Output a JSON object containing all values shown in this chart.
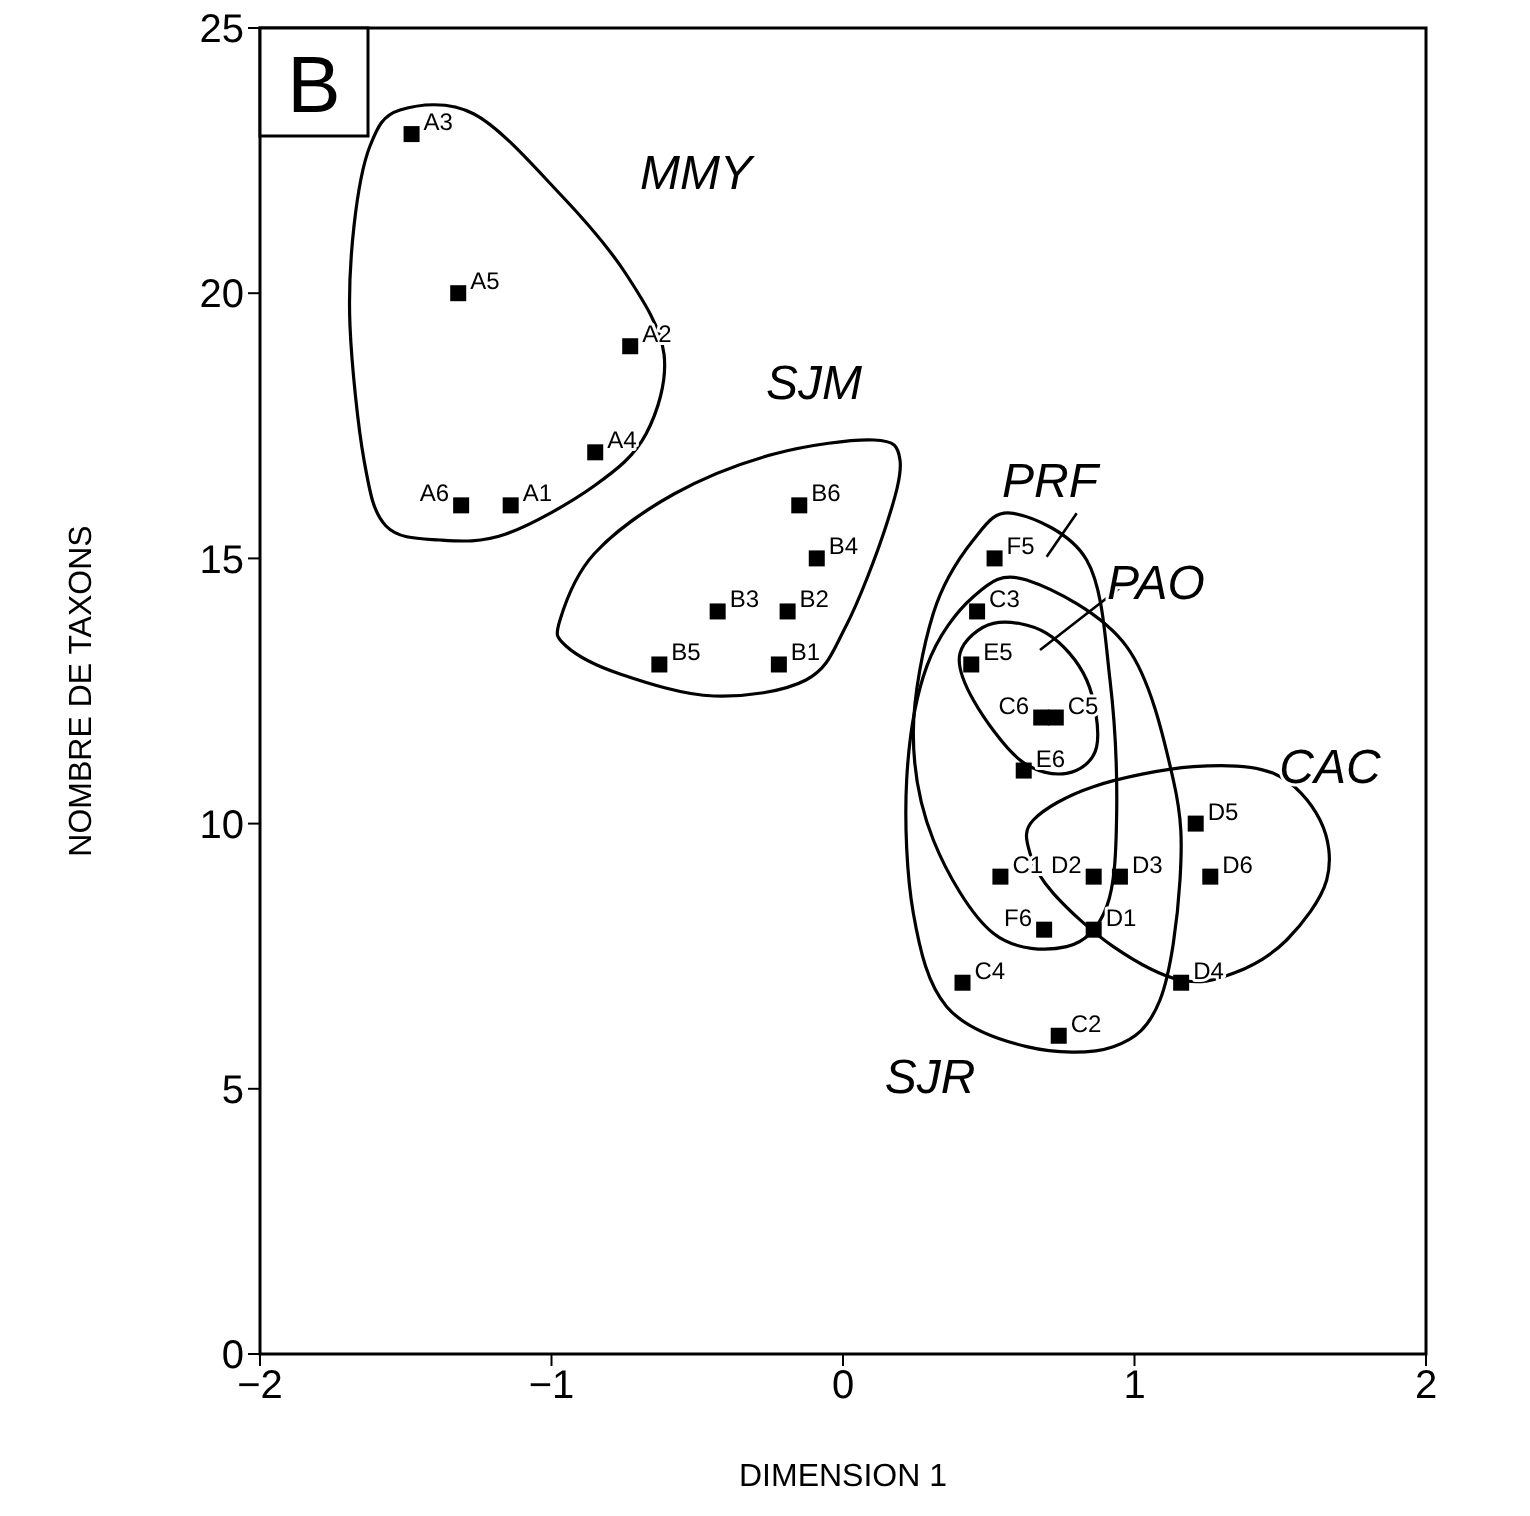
{
  "chart_data": {
    "type": "scatter",
    "xlabel": "DIMENSION 1",
    "ylabel": "NOMBRE DE TAXONS",
    "x": [
      -1.48,
      -1.32,
      -0.73,
      -0.85,
      -1.14,
      -1.31,
      -0.15,
      -0.09,
      -0.19,
      -0.43,
      -0.63,
      -0.22,
      0.52,
      0.46,
      0.44,
      0.68,
      0.73,
      0.62,
      0.54,
      0.86,
      0.95,
      1.21,
      1.26,
      0.69,
      0.86,
      0.41,
      1.16,
      0.74
    ],
    "values": [
      23,
      20,
      19,
      17,
      16,
      16,
      16,
      15,
      14,
      14,
      13,
      13,
      15,
      14,
      13,
      12,
      12,
      11,
      9,
      9,
      9,
      10,
      9,
      8,
      8,
      7,
      7,
      6
    ],
    "color": "#000000",
    "marker": "square",
    "grid": false,
    "legend": false,
    "xlim": [
      -2,
      2
    ],
    "xticks": [
      -2,
      -1,
      0,
      1,
      2
    ],
    "ylim": [
      0,
      25
    ],
    "yticks": [
      0,
      5,
      10,
      15,
      20,
      25
    ],
    "annotations": [
      "B",
      {
        "text": "A3",
        "x": -1.48,
        "y": 23
      },
      {
        "text": "A5",
        "x": -1.32,
        "y": 20
      },
      {
        "text": "A2",
        "x": -0.73,
        "y": 19
      },
      {
        "text": "A4",
        "x": -0.85,
        "y": 17
      },
      {
        "text": "A1",
        "x": -1.14,
        "y": 16
      },
      {
        "text": "A6",
        "x": -1.31,
        "y": 16
      },
      {
        "text": "B6",
        "x": -0.15,
        "y": 16
      },
      {
        "text": "B4",
        "x": -0.09,
        "y": 15
      },
      {
        "text": "B2",
        "x": -0.19,
        "y": 14
      },
      {
        "text": "B3",
        "x": -0.43,
        "y": 14
      },
      {
        "text": "B5",
        "x": -0.63,
        "y": 13
      },
      {
        "text": "B1",
        "x": -0.22,
        "y": 13
      },
      {
        "text": "F5",
        "x": 0.52,
        "y": 15
      },
      {
        "text": "C3",
        "x": 0.46,
        "y": 14
      },
      {
        "text": "E5",
        "x": 0.44,
        "y": 13
      },
      {
        "text": "C6",
        "x": 0.68,
        "y": 12
      },
      {
        "text": "C5",
        "x": 0.73,
        "y": 12
      },
      {
        "text": "E6",
        "x": 0.62,
        "y": 11
      },
      {
        "text": "C1",
        "x": 0.54,
        "y": 9
      },
      {
        "text": "D2",
        "x": 0.86,
        "y": 9
      },
      {
        "text": "D3",
        "x": 0.95,
        "y": 9
      },
      {
        "text": "D5",
        "x": 1.21,
        "y": 10
      },
      {
        "text": "D6",
        "x": 1.26,
        "y": 9
      },
      {
        "text": "F6",
        "x": 0.69,
        "y": 8
      },
      {
        "text": "D1",
        "x": 0.86,
        "y": 8
      },
      {
        "text": "C4",
        "x": 0.41,
        "y": 7
      },
      {
        "text": "D4",
        "x": 1.16,
        "y": 7
      },
      {
        "text": "C2",
        "x": 0.74,
        "y": 6
      },
      "MMY",
      "SJM",
      "PRF",
      "PAO",
      "CAC",
      "SJR"
    ]
  }
}
